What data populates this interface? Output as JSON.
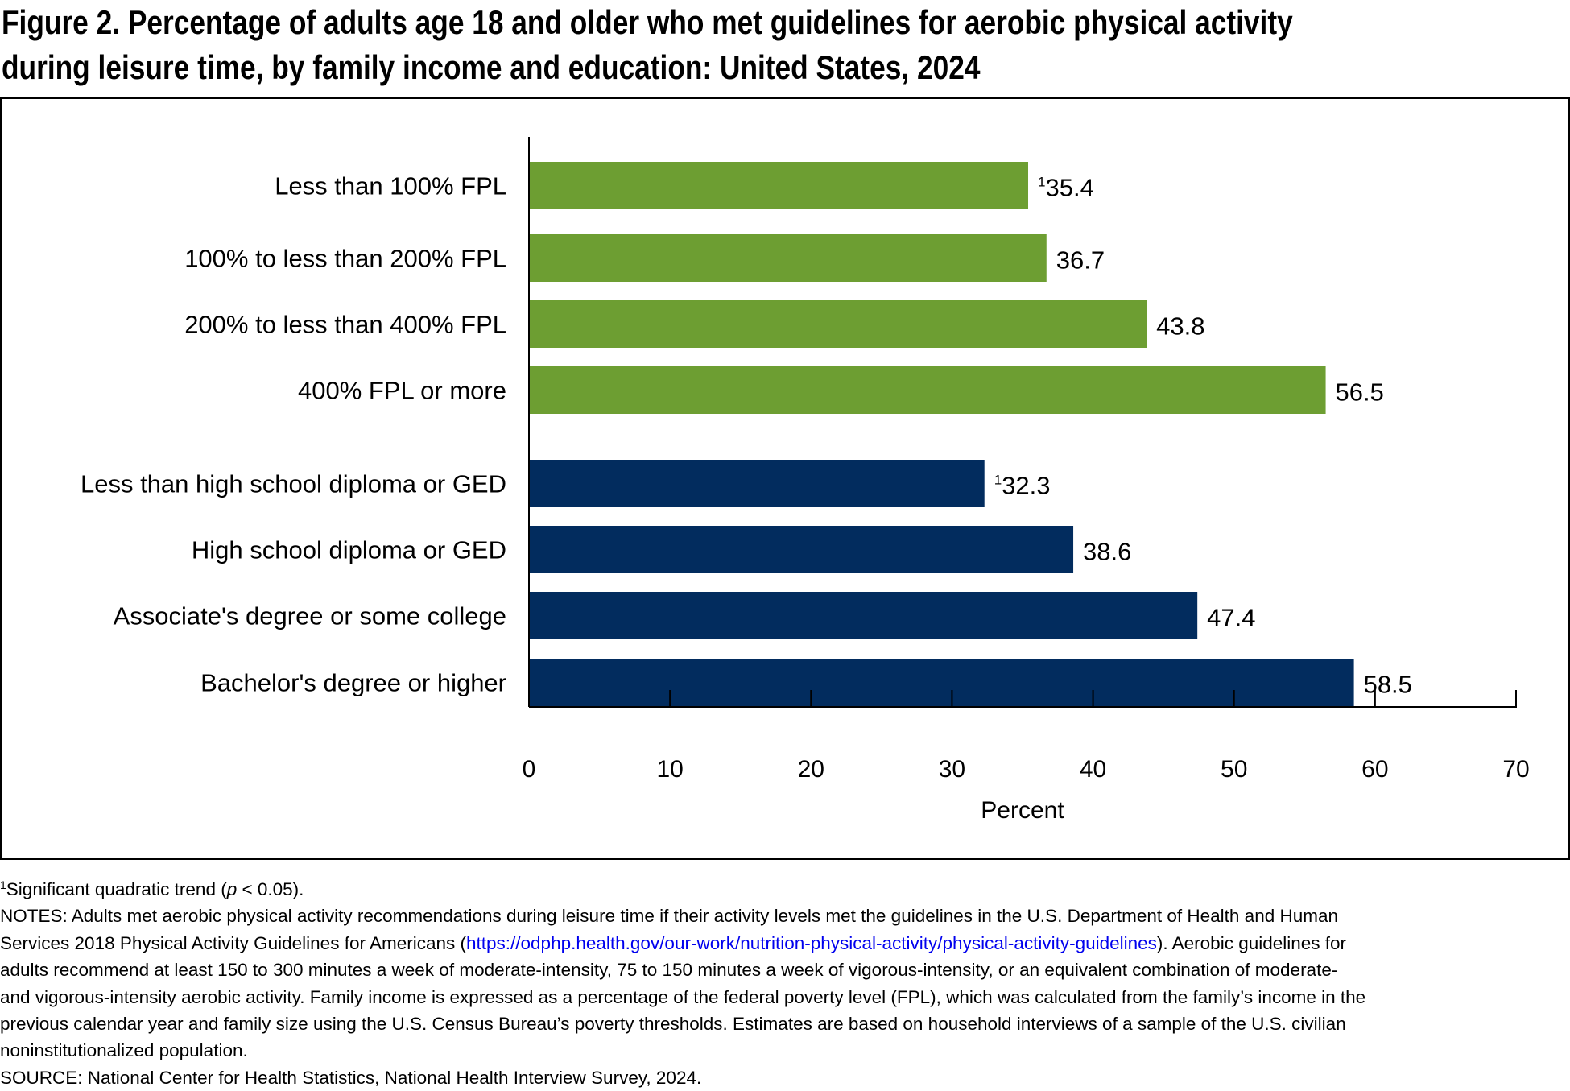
{
  "title": {
    "line1": "Figure 2. Percentage of adults age 18 and older who met guidelines for aerobic physical activity",
    "line2": "during leisure time, by family income and education: United States, 2024"
  },
  "chart_data": {
    "type": "bar",
    "orientation": "horizontal",
    "categories": [
      "Less than 100% FPL",
      "100% to less than 200% FPL",
      "200% to less than 400% FPL",
      "400% FPL or more",
      "Less than high school diploma or GED",
      "High school diploma or GED",
      "Associate's degree or some college",
      "Bachelor's degree or higher"
    ],
    "values": [
      35.4,
      36.7,
      43.8,
      56.5,
      32.3,
      38.6,
      47.4,
      58.5
    ],
    "value_labels": [
      "35.4",
      "36.7",
      "43.8",
      "56.5",
      "32.3",
      "38.6",
      "47.4",
      "58.5"
    ],
    "footnote_marks": [
      "1",
      "",
      "",
      "",
      "1",
      "",
      "",
      ""
    ],
    "groups": [
      {
        "name": "family income",
        "indices": [
          0,
          1,
          2,
          3
        ],
        "color": "#6d9e32"
      },
      {
        "name": "education",
        "indices": [
          4,
          5,
          6,
          7
        ],
        "color": "#022c5e"
      }
    ],
    "xlabel": "Percent",
    "xlim": [
      0,
      70
    ],
    "xticks": [
      "0",
      "10",
      "20",
      "30",
      "40",
      "50",
      "60",
      "70"
    ],
    "grid": false
  },
  "notes": {
    "footnote_mark": "1",
    "footnote": "Significant quadratic trend (",
    "footnote_p": "p",
    "footnote_end": " < 0.05).",
    "line1": "NOTES: Adults met aerobic physical activity recommendations during leisure time if their activity levels met the guidelines in the U.S. Department of Health and Human",
    "line2a": "Services 2018 Physical Activity Guidelines for Americans (",
    "link": "https://odphp.health.gov/our-work/nutrition-physical-activity/physical-activity-guidelines",
    "line2b": "). Aerobic guidelines for",
    "line3": "adults recommend at least 150 to 300 minutes a week of moderate-intensity, 75 to 150 minutes a week of vigorous-intensity, or an equivalent combination of moderate-",
    "line4": "and vigorous-intensity aerobic activity. Family income is expressed as a percentage of the federal poverty level (FPL), which was calculated from the family’s income in the",
    "line5": "previous calendar year and family size using the U.S. Census Bureau’s poverty thresholds. Estimates are based on household interviews of a sample of the U.S. civilian",
    "line6": "noninstitutionalized population.",
    "source": "SOURCE: National Center for Health Statistics, National Health Interview Survey, 2024."
  },
  "colors": {
    "income": "#6d9e32",
    "education": "#022c5e",
    "link": "#0000ee"
  }
}
